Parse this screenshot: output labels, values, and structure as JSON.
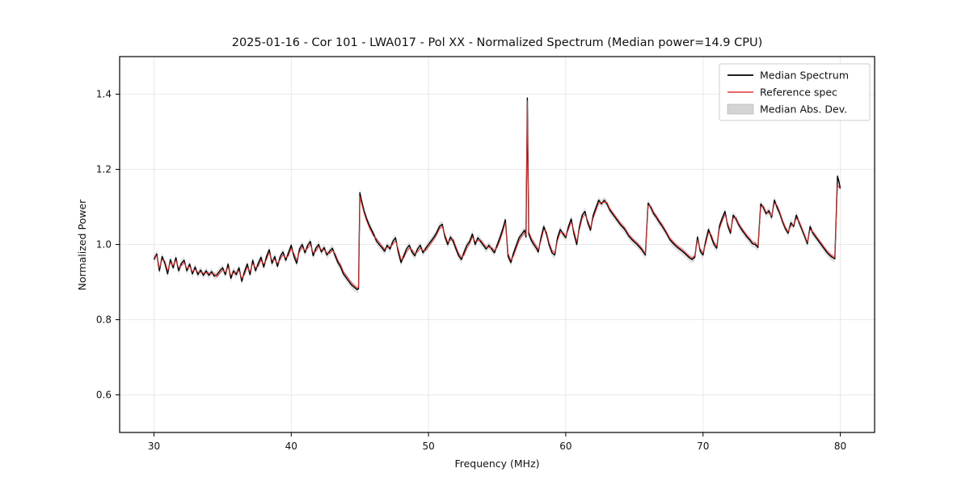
{
  "chart_data": {
    "type": "line",
    "title": "2025-01-16 - Cor 101 - LWA017 - Pol XX - Normalized Spectrum (Median power=14.9 CPU)",
    "xlabel": "Frequency (MHz)",
    "ylabel": "Normalized Power",
    "xlim": [
      27.5,
      82.5
    ],
    "ylim": [
      0.5,
      1.5
    ],
    "xticks": [
      30,
      40,
      50,
      60,
      70,
      80
    ],
    "yticks": [
      0.6,
      0.8,
      1.0,
      1.2,
      1.4
    ],
    "grid": true,
    "colors": {
      "median": "#000000",
      "reference": "#e03535",
      "band": "#c9c9c9",
      "gridline": "#e2e2e2",
      "spine": "#000000"
    },
    "band": {
      "name": "Median Abs. Dev.",
      "halfwidth": 0.01,
      "opacity": 0.55
    },
    "legend": {
      "position": "upper right",
      "entries": [
        {
          "label": "Median Spectrum",
          "type": "line",
          "color": "#000000"
        },
        {
          "label": "Reference spec",
          "type": "line",
          "color": "#e03535"
        },
        {
          "label": "Median Abs. Dev.",
          "type": "patch",
          "color": "#c9c9c9"
        }
      ]
    },
    "series_names": [
      "Median Spectrum",
      "Reference spec"
    ],
    "points": [
      [
        30.0,
        0.96,
        0.968
      ],
      [
        30.2,
        0.975,
        0.97
      ],
      [
        30.4,
        0.93,
        0.938
      ],
      [
        30.6,
        0.968,
        0.96
      ],
      [
        30.8,
        0.95,
        0.956
      ],
      [
        31.0,
        0.922,
        0.93
      ],
      [
        31.2,
        0.96,
        0.952
      ],
      [
        31.4,
        0.938,
        0.944
      ],
      [
        31.6,
        0.965,
        0.958
      ],
      [
        31.8,
        0.93,
        0.938
      ],
      [
        32.0,
        0.95,
        0.944
      ],
      [
        32.2,
        0.958,
        0.952
      ],
      [
        32.4,
        0.93,
        0.936
      ],
      [
        32.6,
        0.948,
        0.942
      ],
      [
        32.8,
        0.922,
        0.928
      ],
      [
        33.0,
        0.94,
        0.934
      ],
      [
        33.2,
        0.92,
        0.926
      ],
      [
        33.4,
        0.932,
        0.926
      ],
      [
        33.6,
        0.918,
        0.924
      ],
      [
        33.8,
        0.93,
        0.924
      ],
      [
        34.0,
        0.918,
        0.924
      ],
      [
        34.2,
        0.928,
        0.922
      ],
      [
        34.4,
        0.916,
        0.922
      ],
      [
        34.6,
        0.92,
        0.914
      ],
      [
        34.8,
        0.93,
        0.924
      ],
      [
        35.0,
        0.938,
        0.932
      ],
      [
        35.2,
        0.92,
        0.926
      ],
      [
        35.4,
        0.948,
        0.94
      ],
      [
        35.6,
        0.91,
        0.918
      ],
      [
        35.8,
        0.93,
        0.924
      ],
      [
        36.0,
        0.92,
        0.926
      ],
      [
        36.2,
        0.938,
        0.93
      ],
      [
        36.4,
        0.902,
        0.91
      ],
      [
        36.6,
        0.928,
        0.92
      ],
      [
        36.8,
        0.948,
        0.94
      ],
      [
        37.0,
        0.92,
        0.928
      ],
      [
        37.2,
        0.958,
        0.95
      ],
      [
        37.4,
        0.93,
        0.938
      ],
      [
        37.6,
        0.95,
        0.942
      ],
      [
        37.8,
        0.966,
        0.958
      ],
      [
        38.0,
        0.94,
        0.948
      ],
      [
        38.2,
        0.968,
        0.96
      ],
      [
        38.4,
        0.986,
        0.978
      ],
      [
        38.6,
        0.95,
        0.958
      ],
      [
        38.8,
        0.968,
        0.96
      ],
      [
        39.0,
        0.942,
        0.95
      ],
      [
        39.2,
        0.968,
        0.96
      ],
      [
        39.4,
        0.98,
        0.972
      ],
      [
        39.6,
        0.958,
        0.964
      ],
      [
        39.8,
        0.978,
        0.97
      ],
      [
        40.0,
        0.998,
        0.99
      ],
      [
        40.2,
        0.968,
        0.976
      ],
      [
        40.4,
        0.95,
        0.958
      ],
      [
        40.6,
        0.988,
        0.98
      ],
      [
        40.8,
        1.0,
        0.992
      ],
      [
        41.0,
        0.978,
        0.984
      ],
      [
        41.2,
        0.998,
        0.99
      ],
      [
        41.4,
        1.008,
        1.0
      ],
      [
        41.6,
        0.97,
        0.978
      ],
      [
        41.8,
        0.99,
        0.982
      ],
      [
        42.0,
        1.0,
        0.994
      ],
      [
        42.2,
        0.98,
        0.986
      ],
      [
        42.4,
        0.992,
        0.986
      ],
      [
        42.6,
        0.972,
        0.978
      ],
      [
        42.8,
        0.982,
        0.976
      ],
      [
        43.0,
        0.99,
        0.984
      ],
      [
        43.2,
        0.97,
        0.976
      ],
      [
        43.4,
        0.952,
        0.958
      ],
      [
        43.6,
        0.94,
        0.946
      ],
      [
        43.8,
        0.922,
        0.928
      ],
      [
        44.0,
        0.912,
        0.918
      ],
      [
        44.2,
        0.902,
        0.908
      ],
      [
        44.4,
        0.892,
        0.898
      ],
      [
        44.6,
        0.886,
        0.89
      ],
      [
        44.8,
        0.88,
        0.884
      ],
      [
        44.9,
        0.882,
        0.886
      ],
      [
        45.0,
        1.138,
        1.128
      ],
      [
        45.1,
        1.12,
        1.112
      ],
      [
        45.3,
        1.09,
        1.084
      ],
      [
        45.5,
        1.068,
        1.062
      ],
      [
        45.7,
        1.05,
        1.044
      ],
      [
        46.0,
        1.028,
        1.022
      ],
      [
        46.2,
        1.01,
        1.016
      ],
      [
        46.4,
        1.0,
        1.006
      ],
      [
        46.6,
        0.992,
        0.996
      ],
      [
        46.8,
        0.982,
        0.988
      ],
      [
        47.0,
        0.998,
        0.992
      ],
      [
        47.2,
        0.988,
        0.994
      ],
      [
        47.4,
        1.008,
        1.0
      ],
      [
        47.6,
        1.018,
        1.01
      ],
      [
        47.8,
        0.98,
        0.988
      ],
      [
        48.0,
        0.952,
        0.96
      ],
      [
        48.2,
        0.97,
        0.964
      ],
      [
        48.4,
        0.988,
        0.98
      ],
      [
        48.6,
        0.998,
        0.99
      ],
      [
        48.8,
        0.98,
        0.986
      ],
      [
        49.0,
        0.97,
        0.976
      ],
      [
        49.2,
        0.988,
        0.98
      ],
      [
        49.4,
        0.998,
        0.99
      ],
      [
        49.6,
        0.978,
        0.984
      ],
      [
        49.8,
        0.99,
        0.984
      ],
      [
        50.0,
        1.0,
        0.994
      ],
      [
        50.2,
        1.01,
        1.004
      ],
      [
        50.4,
        1.02,
        1.014
      ],
      [
        50.6,
        1.032,
        1.026
      ],
      [
        50.8,
        1.048,
        1.042
      ],
      [
        51.0,
        1.054,
        1.048
      ],
      [
        51.2,
        1.02,
        1.026
      ],
      [
        51.4,
        1.0,
        1.006
      ],
      [
        51.6,
        1.02,
        1.012
      ],
      [
        51.8,
        1.008,
        1.014
      ],
      [
        52.0,
        0.988,
        0.994
      ],
      [
        52.2,
        0.97,
        0.976
      ],
      [
        52.4,
        0.96,
        0.966
      ],
      [
        52.6,
        0.98,
        0.972
      ],
      [
        52.8,
        0.998,
        0.99
      ],
      [
        53.0,
        1.008,
        1.002
      ],
      [
        53.2,
        1.028,
        1.02
      ],
      [
        53.4,
        1.0,
        1.008
      ],
      [
        53.6,
        1.018,
        1.01
      ],
      [
        53.8,
        1.008,
        1.012
      ],
      [
        54.0,
        0.998,
        1.002
      ],
      [
        54.2,
        0.988,
        0.994
      ],
      [
        54.4,
        0.998,
        0.992
      ],
      [
        54.6,
        0.988,
        0.992
      ],
      [
        54.8,
        0.978,
        0.984
      ],
      [
        55.0,
        0.998,
        0.992
      ],
      [
        55.2,
        1.018,
        1.01
      ],
      [
        55.4,
        1.04,
        1.032
      ],
      [
        55.6,
        1.066,
        1.058
      ],
      [
        55.8,
        0.968,
        0.976
      ],
      [
        56.0,
        0.952,
        0.958
      ],
      [
        56.2,
        0.978,
        0.97
      ],
      [
        56.4,
        0.998,
        0.99
      ],
      [
        56.6,
        1.018,
        1.01
      ],
      [
        56.8,
        1.028,
        1.022
      ],
      [
        57.0,
        1.038,
        1.03
      ],
      [
        57.1,
        1.02,
        1.026
      ],
      [
        57.2,
        1.39,
        1.382
      ],
      [
        57.3,
        1.028,
        1.034
      ],
      [
        57.5,
        1.01,
        1.016
      ],
      [
        57.7,
        0.998,
        1.004
      ],
      [
        57.9,
        0.988,
        0.994
      ],
      [
        58.0,
        0.98,
        0.986
      ],
      [
        58.2,
        1.018,
        1.01
      ],
      [
        58.4,
        1.048,
        1.04
      ],
      [
        58.6,
        1.028,
        1.034
      ],
      [
        58.8,
        0.998,
        1.004
      ],
      [
        59.0,
        0.978,
        0.984
      ],
      [
        59.2,
        0.972,
        0.978
      ],
      [
        59.4,
        1.018,
        1.01
      ],
      [
        59.6,
        1.04,
        1.032
      ],
      [
        59.8,
        1.028,
        1.032
      ],
      [
        60.0,
        1.018,
        1.022
      ],
      [
        60.2,
        1.048,
        1.04
      ],
      [
        60.4,
        1.068,
        1.06
      ],
      [
        60.6,
        1.028,
        1.036
      ],
      [
        60.8,
        1.0,
        1.008
      ],
      [
        61.0,
        1.048,
        1.04
      ],
      [
        61.2,
        1.078,
        1.07
      ],
      [
        61.4,
        1.088,
        1.08
      ],
      [
        61.6,
        1.058,
        1.064
      ],
      [
        61.8,
        1.038,
        1.044
      ],
      [
        62.0,
        1.078,
        1.07
      ],
      [
        62.2,
        1.098,
        1.09
      ],
      [
        62.4,
        1.118,
        1.11
      ],
      [
        62.6,
        1.108,
        1.112
      ],
      [
        62.8,
        1.118,
        1.112
      ],
      [
        63.0,
        1.108,
        1.112
      ],
      [
        63.2,
        1.092,
        1.096
      ],
      [
        63.4,
        1.082,
        1.086
      ],
      [
        63.6,
        1.072,
        1.076
      ],
      [
        63.8,
        1.062,
        1.066
      ],
      [
        64.0,
        1.052,
        1.056
      ],
      [
        64.3,
        1.04,
        1.044
      ],
      [
        64.6,
        1.022,
        1.026
      ],
      [
        64.9,
        1.01,
        1.014
      ],
      [
        65.2,
        1.0,
        1.004
      ],
      [
        65.5,
        0.988,
        0.992
      ],
      [
        65.8,
        0.972,
        0.976
      ],
      [
        66.0,
        1.11,
        1.104
      ],
      [
        66.2,
        1.098,
        1.102
      ],
      [
        66.4,
        1.082,
        1.086
      ],
      [
        66.6,
        1.072,
        1.076
      ],
      [
        66.8,
        1.06,
        1.064
      ],
      [
        67.0,
        1.05,
        1.054
      ],
      [
        67.3,
        1.032,
        1.036
      ],
      [
        67.6,
        1.012,
        1.016
      ],
      [
        67.9,
        1.0,
        1.004
      ],
      [
        68.2,
        0.99,
        0.994
      ],
      [
        68.5,
        0.982,
        0.986
      ],
      [
        68.8,
        0.972,
        0.976
      ],
      [
        69.0,
        0.965,
        0.969
      ],
      [
        69.2,
        0.96,
        0.964
      ],
      [
        69.4,
        0.966,
        0.97
      ],
      [
        69.6,
        1.02,
        1.012
      ],
      [
        69.8,
        0.982,
        0.988
      ],
      [
        70.0,
        0.972,
        0.978
      ],
      [
        70.2,
        1.01,
        1.002
      ],
      [
        70.4,
        1.04,
        1.032
      ],
      [
        70.6,
        1.02,
        1.026
      ],
      [
        70.8,
        1.0,
        1.006
      ],
      [
        71.0,
        0.99,
        0.996
      ],
      [
        71.2,
        1.05,
        1.042
      ],
      [
        71.4,
        1.07,
        1.062
      ],
      [
        71.6,
        1.088,
        1.08
      ],
      [
        71.8,
        1.05,
        1.056
      ],
      [
        72.0,
        1.03,
        1.036
      ],
      [
        72.2,
        1.078,
        1.07
      ],
      [
        72.4,
        1.068,
        1.072
      ],
      [
        72.6,
        1.052,
        1.056
      ],
      [
        72.8,
        1.04,
        1.044
      ],
      [
        73.0,
        1.03,
        1.034
      ],
      [
        73.2,
        1.02,
        1.024
      ],
      [
        73.4,
        1.012,
        1.016
      ],
      [
        73.6,
        1.002,
        1.006
      ],
      [
        73.8,
        1.0,
        1.004
      ],
      [
        74.0,
        0.992,
        0.996
      ],
      [
        74.2,
        1.108,
        1.1
      ],
      [
        74.4,
        1.098,
        1.102
      ],
      [
        74.6,
        1.082,
        1.086
      ],
      [
        74.8,
        1.09,
        1.084
      ],
      [
        75.0,
        1.072,
        1.076
      ],
      [
        75.2,
        1.118,
        1.11
      ],
      [
        75.4,
        1.098,
        1.104
      ],
      [
        75.6,
        1.082,
        1.086
      ],
      [
        75.8,
        1.06,
        1.064
      ],
      [
        76.0,
        1.042,
        1.046
      ],
      [
        76.2,
        1.03,
        1.034
      ],
      [
        76.4,
        1.058,
        1.05
      ],
      [
        76.6,
        1.048,
        1.052
      ],
      [
        76.8,
        1.078,
        1.07
      ],
      [
        77.0,
        1.058,
        1.062
      ],
      [
        77.2,
        1.04,
        1.044
      ],
      [
        77.4,
        1.022,
        1.026
      ],
      [
        77.6,
        1.002,
        1.006
      ],
      [
        77.8,
        1.048,
        1.04
      ],
      [
        78.0,
        1.03,
        1.034
      ],
      [
        78.2,
        1.02,
        1.024
      ],
      [
        78.4,
        1.01,
        1.014
      ],
      [
        78.6,
        1.0,
        1.004
      ],
      [
        78.8,
        0.99,
        0.994
      ],
      [
        79.0,
        0.98,
        0.984
      ],
      [
        79.2,
        0.972,
        0.976
      ],
      [
        79.4,
        0.966,
        0.97
      ],
      [
        79.6,
        0.962,
        0.966
      ],
      [
        79.8,
        1.182,
        1.16
      ],
      [
        79.9,
        1.168,
        1.152
      ],
      [
        80.0,
        1.15,
        1.148
      ]
    ]
  }
}
